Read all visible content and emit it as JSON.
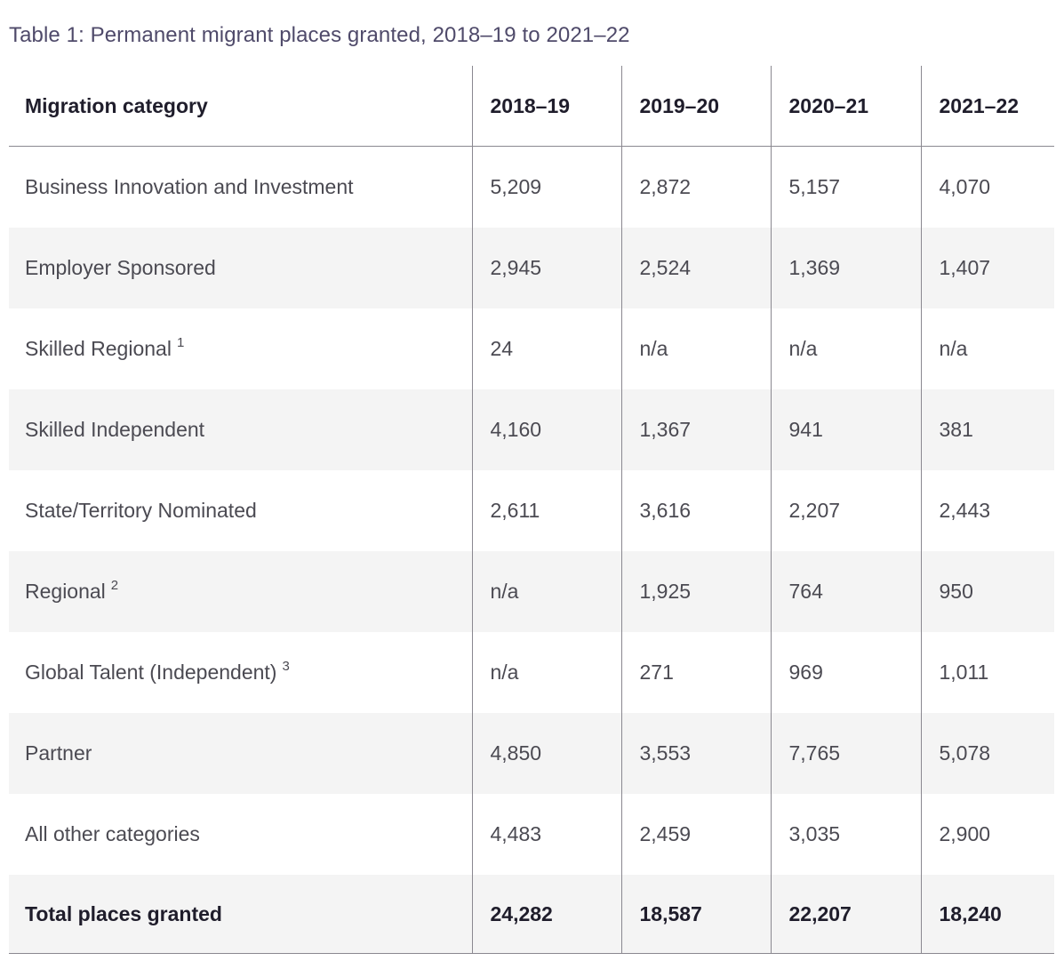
{
  "caption": "Table 1: Permanent migrant places granted, 2018–19 to 2021–22",
  "table": {
    "headers": [
      "Migration category",
      "2018–19",
      "2019–20",
      "2020–21",
      "2021–22"
    ],
    "rows": [
      {
        "category": "Business Innovation and Investment",
        "note": "",
        "values": [
          "5,209",
          "2,872",
          "5,157",
          "4,070"
        ]
      },
      {
        "category": "Employer Sponsored",
        "note": "",
        "values": [
          "2,945",
          "2,524",
          "1,369",
          "1,407"
        ]
      },
      {
        "category": "Skilled Regional",
        "note": "1",
        "values": [
          "24",
          "n/a",
          "n/a",
          "n/a"
        ]
      },
      {
        "category": "Skilled Independent",
        "note": "",
        "values": [
          "4,160",
          "1,367",
          "941",
          "381"
        ]
      },
      {
        "category": "State/Territory Nominated",
        "note": "",
        "values": [
          "2,611",
          "3,616",
          "2,207",
          "2,443"
        ]
      },
      {
        "category": "Regional",
        "note": "2",
        "values": [
          "n/a",
          "1,925",
          "764",
          "950"
        ]
      },
      {
        "category": "Global Talent (Independent)",
        "note": "3",
        "values": [
          "n/a",
          "271",
          "969",
          "1,011"
        ]
      },
      {
        "category": "Partner",
        "note": "",
        "values": [
          "4,850",
          "3,553",
          "7,765",
          "5,078"
        ]
      },
      {
        "category": "All other categories",
        "note": "",
        "values": [
          "4,483",
          "2,459",
          "3,035",
          "2,900"
        ]
      }
    ],
    "total": {
      "category": "Total places granted",
      "values": [
        "24,282",
        "18,587",
        "22,207",
        "18,240"
      ]
    }
  }
}
